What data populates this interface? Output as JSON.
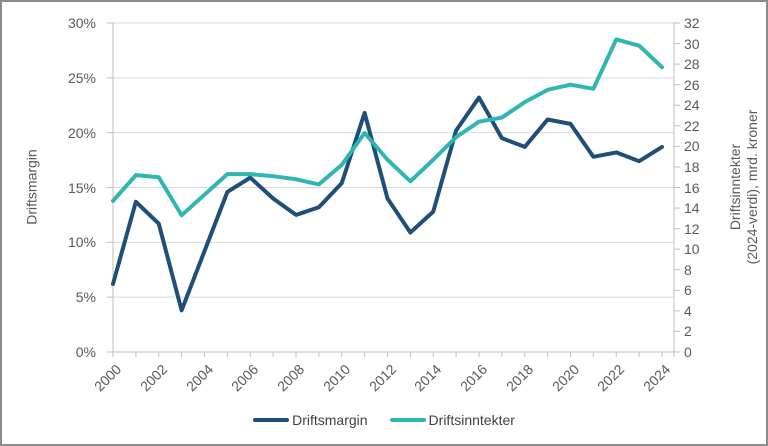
{
  "chart_data": {
    "type": "line",
    "title": "",
    "x": [
      2000,
      2001,
      2002,
      2003,
      2004,
      2005,
      2006,
      2007,
      2008,
      2009,
      2010,
      2011,
      2012,
      2013,
      2014,
      2015,
      2016,
      2017,
      2018,
      2019,
      2020,
      2021,
      2022,
      2023,
      2024
    ],
    "series": [
      {
        "name": "Driftsmargin",
        "axis": "left",
        "color": "#1F4E79",
        "values": [
          6.2,
          13.7,
          11.7,
          3.8,
          9.2,
          14.6,
          15.9,
          14.0,
          12.5,
          13.2,
          15.4,
          21.8,
          14.0,
          10.9,
          12.8,
          20.2,
          23.2,
          19.5,
          18.7,
          21.2,
          20.8,
          17.8,
          18.2,
          17.4,
          18.7
        ]
      },
      {
        "name": "Driftsinntekter",
        "axis": "right",
        "color": "#2FB5B2",
        "values": [
          14.7,
          17.2,
          17.0,
          13.3,
          15.3,
          17.3,
          17.3,
          17.1,
          16.8,
          16.3,
          18.2,
          21.3,
          18.7,
          16.6,
          18.7,
          20.9,
          22.4,
          22.8,
          24.3,
          25.5,
          26.0,
          25.6,
          30.4,
          29.8,
          27.7
        ]
      }
    ],
    "left_axis": {
      "title": "Driftsmargin",
      "min": 0,
      "max": 30,
      "step": 5,
      "tick_labels": [
        "0%",
        "5%",
        "10%",
        "15%",
        "20%",
        "25%",
        "30%"
      ]
    },
    "right_axis": {
      "title_lines": [
        "Driftsinntekter",
        "(2024-verdi), mrd. kroner"
      ],
      "min": 0,
      "max": 32,
      "step": 2,
      "tick_labels": [
        "0",
        "2",
        "4",
        "6",
        "8",
        "10",
        "12",
        "14",
        "16",
        "18",
        "20",
        "22",
        "24",
        "26",
        "28",
        "30",
        "32"
      ]
    },
    "x_axis": {
      "tick_labels": [
        "2000",
        "2002",
        "2004",
        "2006",
        "2008",
        "2010",
        "2012",
        "2014",
        "2016",
        "2018",
        "2020",
        "2022",
        "2024"
      ],
      "label_every_n_years": 2
    },
    "legend": {
      "position": "bottom",
      "entries": [
        "Driftsmargin",
        "Driftsinntekter"
      ]
    },
    "grid": "horizontal",
    "grid_color": "#D9D9D9",
    "axis_line_color": "#BFBFBF",
    "tick_text_color": "#595959",
    "legend_text_color": "#404040"
  }
}
